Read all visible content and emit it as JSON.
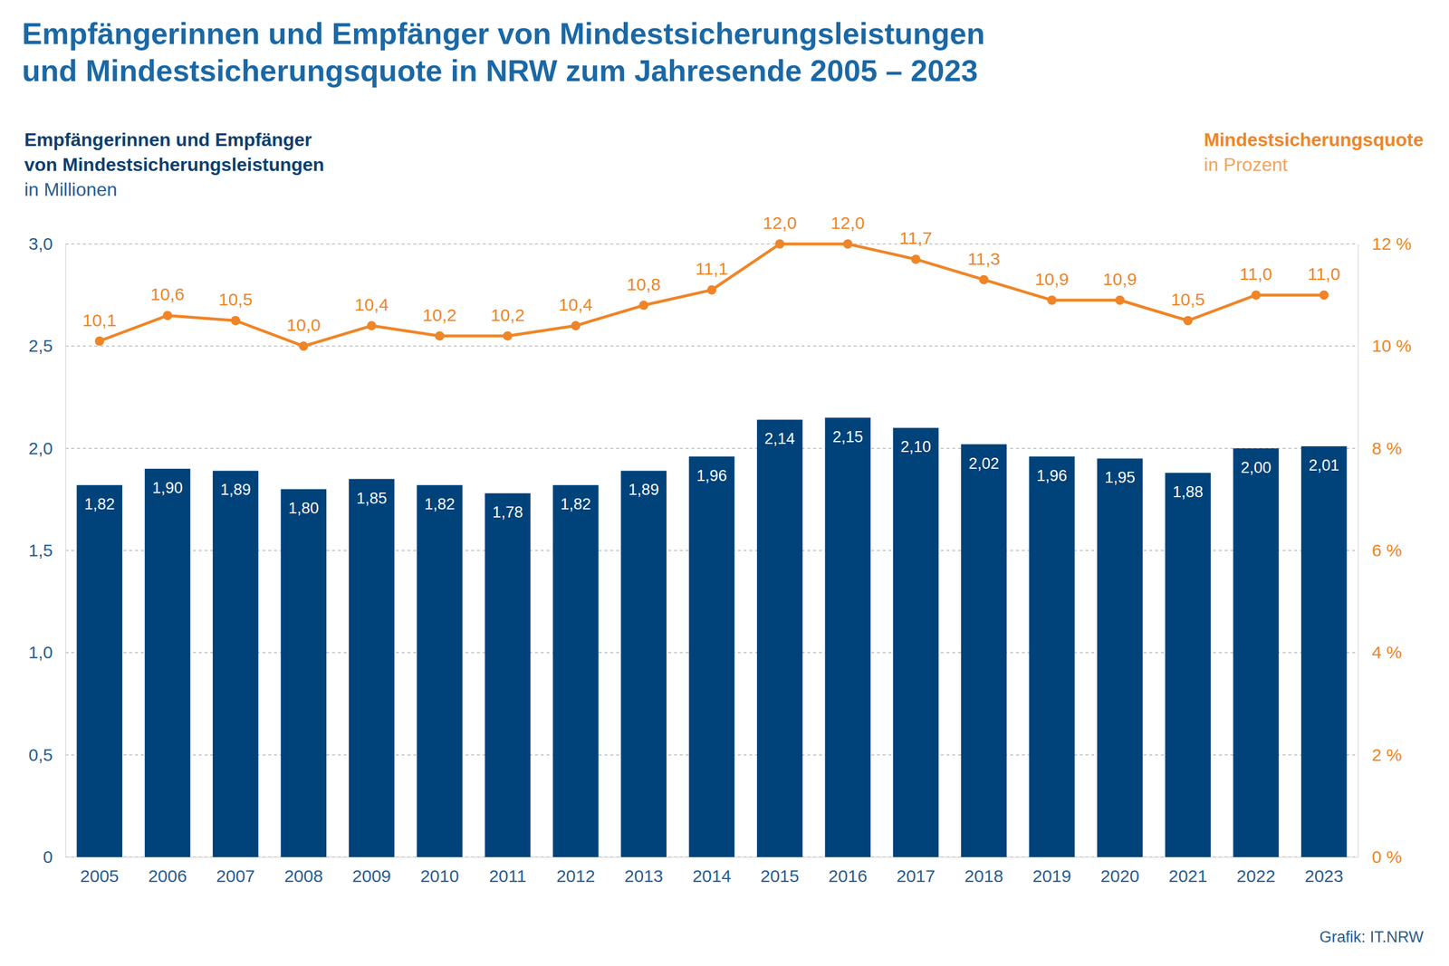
{
  "chart_data": {
    "type": "bar",
    "title": "Empfängerinnen und Empfänger von Mindestsicherungsleistungen und Mindestsicherungsquote in NRW zum Jahresende 2005 – 2023",
    "ylabel": "in Millionen",
    "y2label": "in Prozent",
    "source": "Grafik: IT.NRW",
    "categories": [
      "2005",
      "2006",
      "2007",
      "2008",
      "2009",
      "2010",
      "2011",
      "2012",
      "2013",
      "2014",
      "2015",
      "2016",
      "2017",
      "2018",
      "2019",
      "2020",
      "2021",
      "2022",
      "2023"
    ],
    "series": [
      {
        "name": "Empfängerinnen und Empfänger von Mindestsicherungsleistungen",
        "type": "bar",
        "color": "#00427a",
        "values": [
          1.82,
          1.9,
          1.89,
          1.8,
          1.85,
          1.82,
          1.78,
          1.82,
          1.89,
          1.96,
          2.14,
          2.15,
          2.1,
          2.02,
          1.96,
          1.95,
          1.88,
          2.0,
          2.01
        ],
        "value_labels": [
          "1,82",
          "1,90",
          "1,89",
          "1,80",
          "1,85",
          "1,82",
          "1,78",
          "1,82",
          "1,89",
          "1,96",
          "2,14",
          "2,15",
          "2,10",
          "2,02",
          "1,96",
          "1,95",
          "1,88",
          "2,00",
          "2,01"
        ]
      },
      {
        "name": "Mindestsicherungsquote",
        "type": "line",
        "axis": "y2",
        "color": "#ef8527",
        "marker": "circle",
        "values": [
          10.1,
          10.6,
          10.5,
          10.0,
          10.4,
          10.2,
          10.2,
          10.4,
          10.8,
          11.1,
          12.0,
          12.0,
          11.7,
          11.3,
          10.9,
          10.9,
          10.5,
          11.0,
          11.0
        ],
        "value_labels": [
          "10,1",
          "10,6",
          "10,5",
          "10,0",
          "10,4",
          "10,2",
          "10,2",
          "10,4",
          "10,8",
          "11,1",
          "12,0",
          "12,0",
          "11,7",
          "11,3",
          "10,9",
          "10,9",
          "10,5",
          "11,0",
          "11,0"
        ]
      }
    ],
    "ylim": [
      0,
      3
    ],
    "yticks": [
      0,
      {
        "value": 0.5,
        "label": "0,5"
      },
      {
        "value": 1,
        "label": "1,0"
      },
      {
        "value": 1.5,
        "label": "1,5"
      },
      {
        "value": 2,
        "label": "2,0"
      },
      {
        "value": 2.5,
        "label": "2,5"
      },
      {
        "value": 3,
        "label": "3,0"
      }
    ],
    "y2lim": [
      0,
      12
    ],
    "y2ticks": [
      {
        "value": 0,
        "label": "0 %"
      },
      {
        "value": 2,
        "label": "2 %"
      },
      {
        "value": 4,
        "label": "4 %"
      },
      {
        "value": 6,
        "label": "6 %"
      },
      {
        "value": 8,
        "label": "8 %"
      },
      {
        "value": 10,
        "label": "10 %"
      },
      {
        "value": 12,
        "label": "12 %"
      }
    ],
    "grid": true,
    "data_labels": true
  }
}
